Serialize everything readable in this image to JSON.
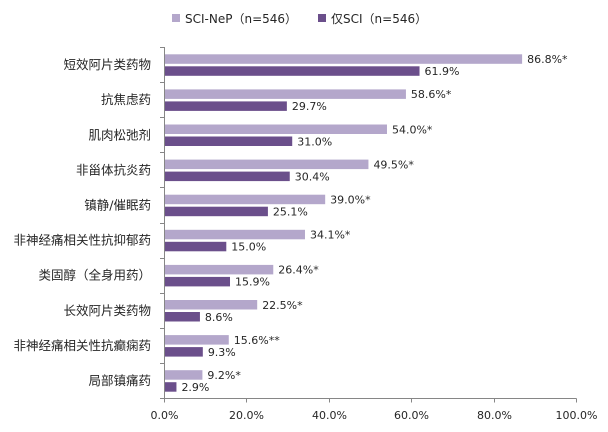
{
  "chart_data": {
    "type": "bar",
    "orientation": "horizontal",
    "categories": [
      "短效阿片类药物",
      "抗焦虑药",
      "肌肉松弛剂",
      "非甾体抗炎药",
      "镇静/催眠药",
      "非神经痛相关性抗抑郁药",
      "类固醇（全身用药）",
      "长效阿片类药物",
      "非神经痛相关性抗癫痫药",
      "局部镇痛药"
    ],
    "series": [
      {
        "name": "SCI-NeP（n=546）",
        "color": "#b4a7cb",
        "values": [
          86.8,
          58.6,
          54.0,
          49.5,
          39.0,
          34.1,
          26.4,
          22.5,
          15.6,
          9.2
        ],
        "data_labels": [
          "86.8%*",
          "58.6%*",
          "54.0%*",
          "49.5%*",
          "39.0%*",
          "34.1%*",
          "26.4%*",
          "22.5%*",
          "15.6%**",
          "9.2%*"
        ]
      },
      {
        "name": "仅SCI（n=546）",
        "color": "#6b4f8b",
        "values": [
          61.9,
          29.7,
          31.0,
          30.4,
          25.1,
          15.0,
          15.9,
          8.6,
          9.3,
          2.9
        ],
        "data_labels": [
          "61.9%",
          "29.7%",
          "31.0%",
          "30.4%",
          "25.1%",
          "15.0%",
          "15.9%",
          "8.6%",
          "9.3%",
          "2.9%"
        ]
      }
    ],
    "xlim": [
      0,
      100
    ],
    "x_ticks": [
      0,
      20,
      40,
      60,
      80,
      100
    ],
    "x_tick_labels": [
      "0.0%",
      "20.0%",
      "40.0%",
      "60.0%",
      "80.0%",
      "100.0%"
    ],
    "grid": false,
    "legend_position": "top"
  }
}
